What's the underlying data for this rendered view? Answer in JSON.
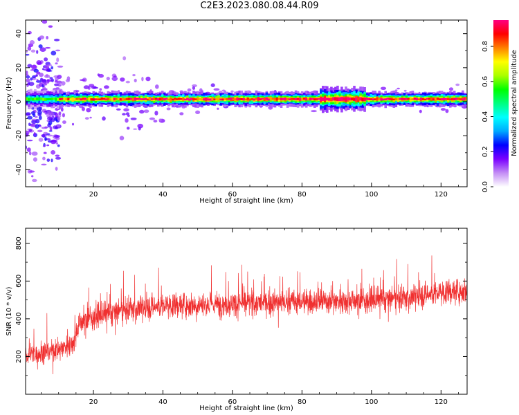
{
  "figure": {
    "title": "C2E3.2023.080.08.44.R09"
  },
  "chart_data": [
    {
      "type": "heatmap",
      "title": "",
      "xlabel": "Height of straight line (km)",
      "ylabel": "Frequency (Hz)",
      "xlim": [
        0.5,
        127.5
      ],
      "ylim": [
        -50,
        48
      ],
      "x_ticks": [
        20,
        40,
        60,
        80,
        100,
        120
      ],
      "y_ticks": [
        -40,
        -20,
        0,
        20,
        40
      ],
      "colorbar": {
        "label": "Normalized spectral amplitude",
        "range": [
          0.0,
          0.95
        ],
        "ticks": [
          0.0,
          0.2,
          0.4,
          0.6,
          0.8
        ],
        "colormap": [
          "#ffffff",
          "#c38cf5",
          "#7a00ff",
          "#0000ff",
          "#00aaff",
          "#00ffff",
          "#00ff80",
          "#00ff00",
          "#aaff00",
          "#ffff00",
          "#ff8000",
          "#ff0000",
          "#ff0080"
        ]
      },
      "band": {
        "description": "Strong spectral ridge near 1.5 Hz spanning full height range",
        "center_frequency_hz": 1.5,
        "segments": [
          {
            "x_start": 0.5,
            "x_end": 10,
            "peak": 0.55
          },
          {
            "x_start": 10,
            "x_end": 30,
            "peak": 0.85
          },
          {
            "x_start": 30,
            "x_end": 85,
            "peak": 0.9
          },
          {
            "x_start": 85,
            "x_end": 98,
            "peak": 0.95
          },
          {
            "x_start": 98,
            "x_end": 127.5,
            "peak": 0.9
          }
        ]
      }
    },
    {
      "type": "line",
      "title": "",
      "xlabel": "Height of straight line (km)",
      "ylabel": "SNR (10 * v/v)",
      "xlim": [
        0.5,
        127.5
      ],
      "ylim": [
        0,
        880
      ],
      "x_ticks": [
        20,
        40,
        60,
        80,
        100,
        120
      ],
      "y_ticks": [
        200,
        400,
        600,
        800
      ],
      "color": "#f03030",
      "trend": {
        "x": [
          0.5,
          5,
          10,
          14,
          16,
          20,
          30,
          40,
          60,
          80,
          100,
          110,
          120,
          127.5
        ],
        "y": [
          210,
          220,
          240,
          270,
          380,
          410,
          450,
          470,
          480,
          490,
          500,
          510,
          540,
          550
        ]
      }
    }
  ]
}
